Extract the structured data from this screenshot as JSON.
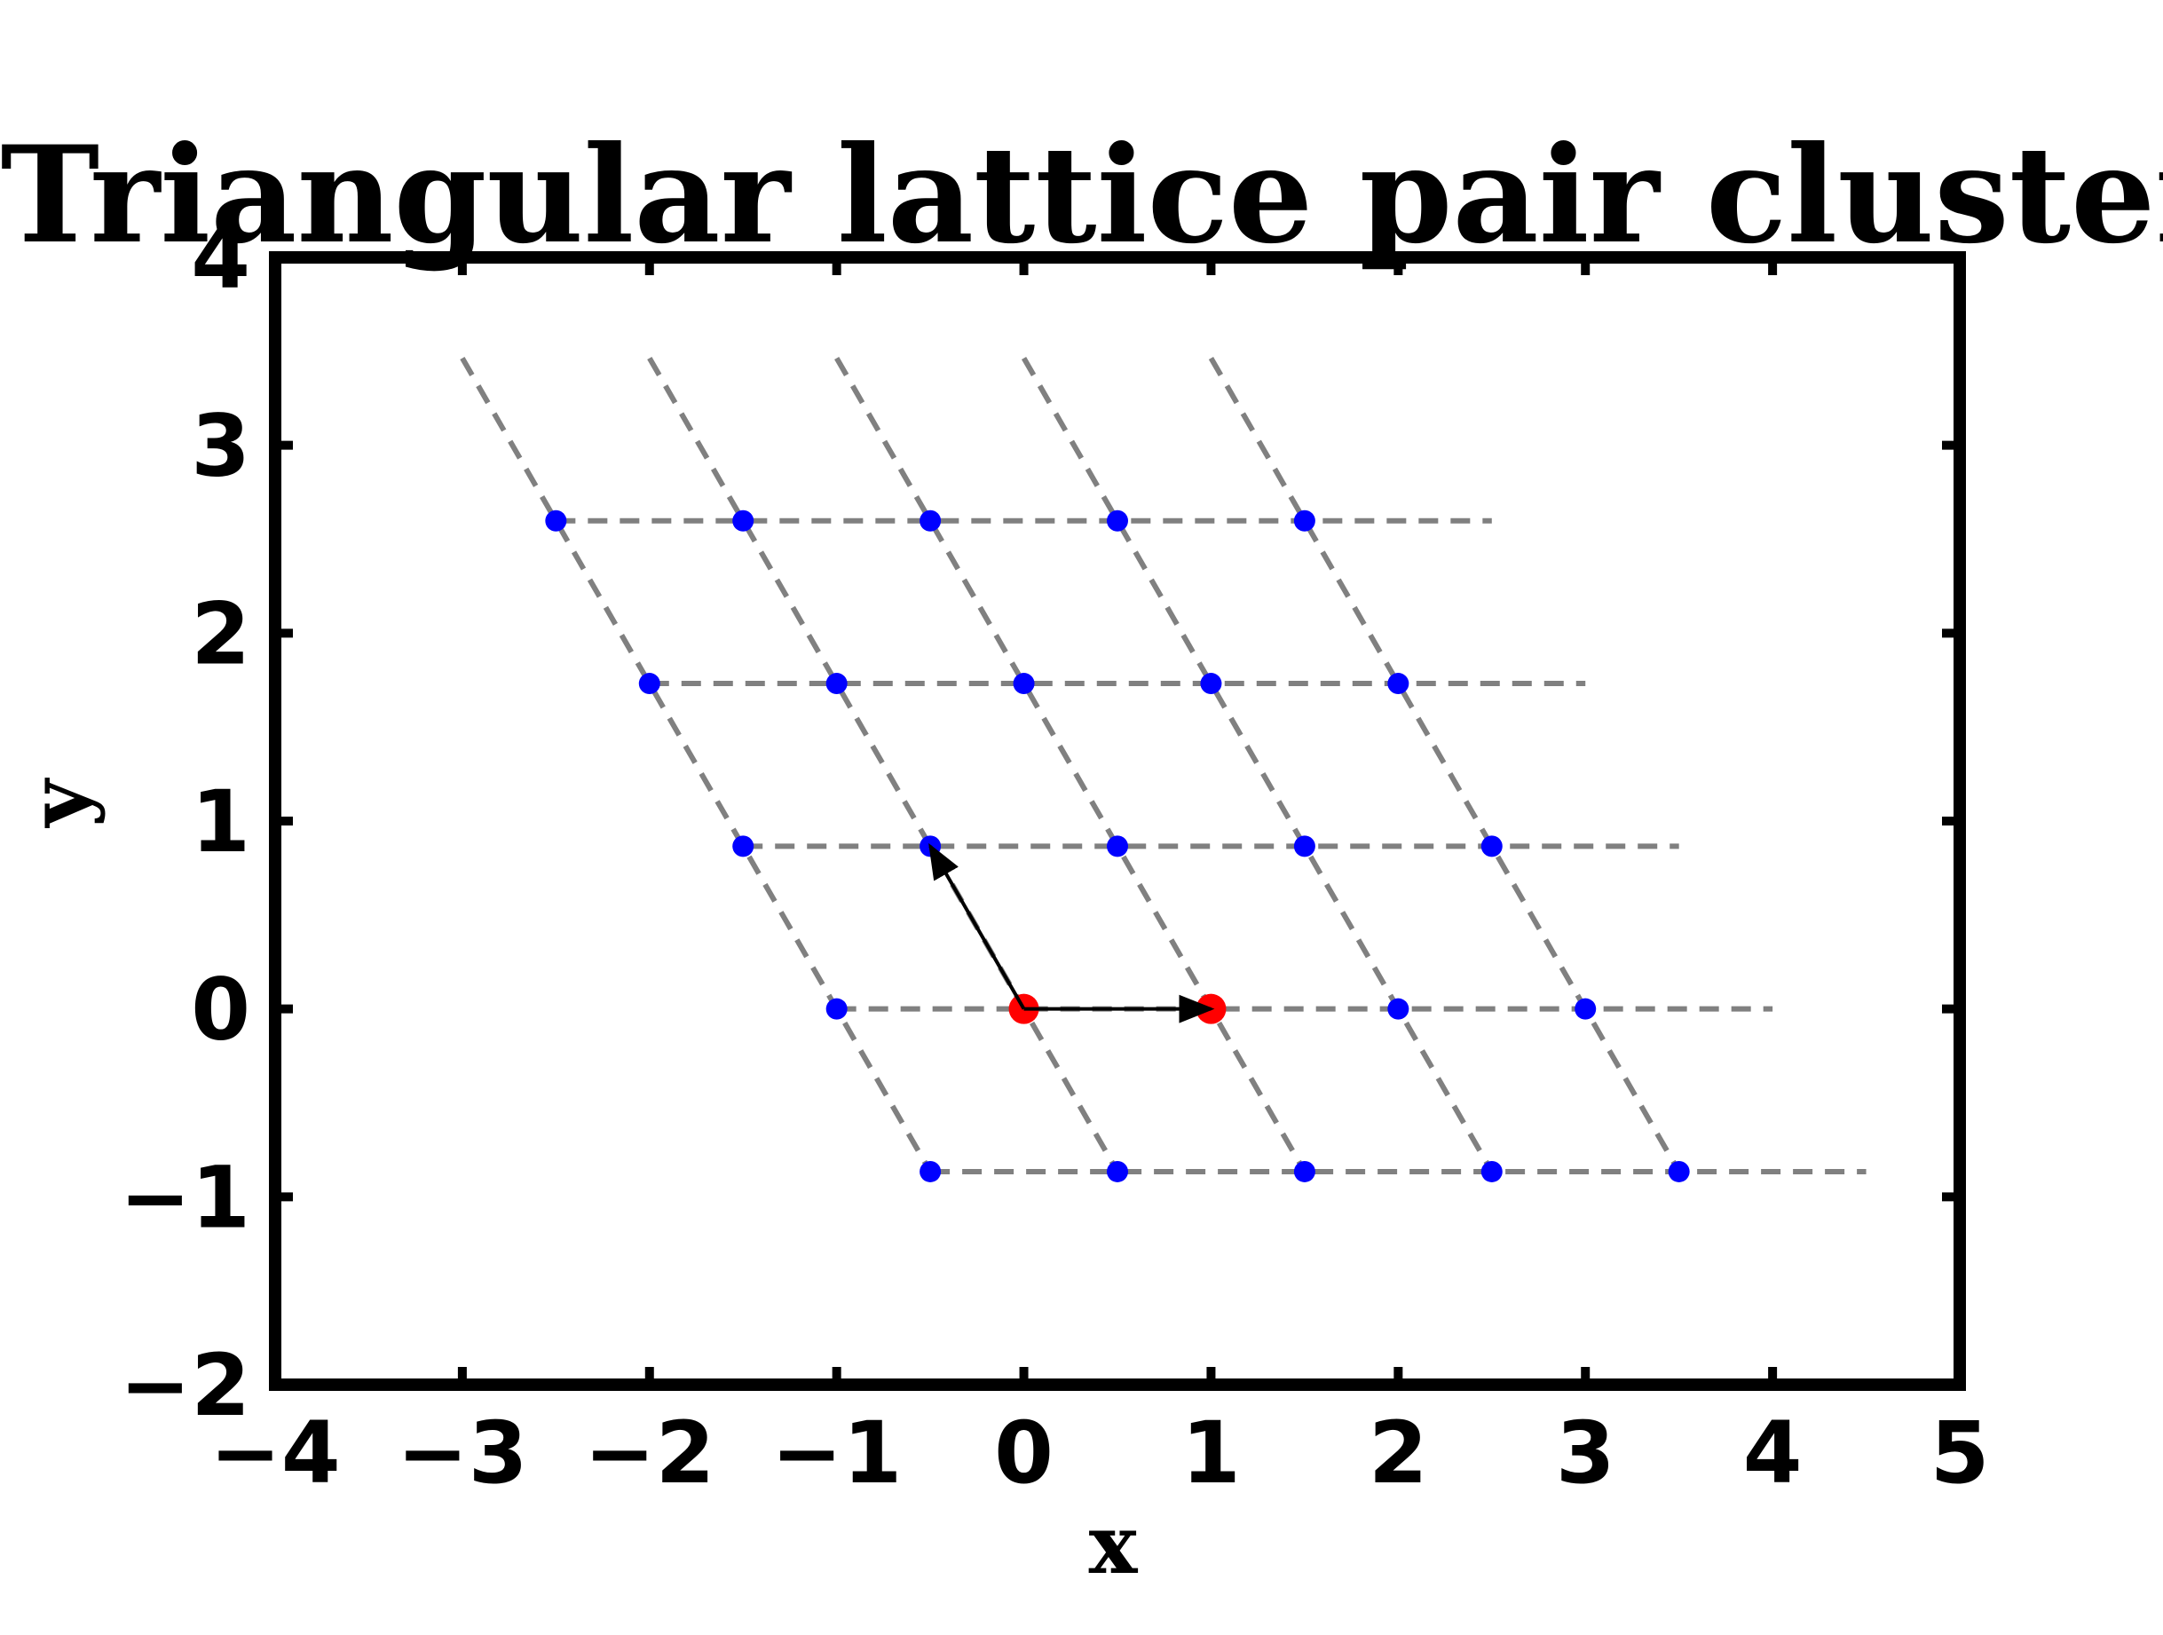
{
  "chart_data": {
    "type": "scatter",
    "title": "Triangular lattice pair cluster",
    "xlabel": "x",
    "ylabel": "y",
    "xlim": [
      -4,
      5
    ],
    "ylim": [
      -2,
      4
    ],
    "xticks": [
      -4,
      -3,
      -2,
      -1,
      0,
      1,
      2,
      3,
      4,
      5
    ],
    "yticks": [
      -2,
      -1,
      0,
      1,
      2,
      3,
      4
    ],
    "xtick_labels": [
      "−4",
      "−3",
      "−2",
      "−1",
      "0",
      "1",
      "2",
      "3",
      "4",
      "5"
    ],
    "ytick_labels": [
      "−2",
      "−1",
      "0",
      "1",
      "2",
      "3",
      "4"
    ],
    "grid": false,
    "legend": "none",
    "series": [
      {
        "kind": "lattice-points",
        "color": "#0000ff",
        "points": [
          [
            -2.5,
            2.598
          ],
          [
            -1.5,
            2.598
          ],
          [
            -0.5,
            2.598
          ],
          [
            0.5,
            2.598
          ],
          [
            1.5,
            2.598
          ],
          [
            -2.0,
            1.732
          ],
          [
            -1.0,
            1.732
          ],
          [
            0.0,
            1.732
          ],
          [
            1.0,
            1.732
          ],
          [
            2.0,
            1.732
          ],
          [
            -1.5,
            0.866
          ],
          [
            -0.5,
            0.866
          ],
          [
            0.5,
            0.866
          ],
          [
            1.5,
            0.866
          ],
          [
            2.5,
            0.866
          ],
          [
            -1.0,
            0.0
          ],
          [
            2.0,
            0.0
          ],
          [
            3.0,
            0.0
          ],
          [
            -0.5,
            -0.866
          ],
          [
            0.5,
            -0.866
          ],
          [
            1.5,
            -0.866
          ],
          [
            2.5,
            -0.866
          ],
          [
            3.5,
            -0.866
          ]
        ]
      },
      {
        "kind": "cluster-sites",
        "color": "#ff0000",
        "points": [
          [
            0.0,
            0.0
          ],
          [
            1.0,
            0.0
          ]
        ]
      }
    ],
    "lattice_lines": {
      "color": "#808080",
      "style": "dashed",
      "horizontal": [
        {
          "y": 2.598,
          "x": [
            -2.5,
            2.5
          ]
        },
        {
          "y": 1.732,
          "x": [
            -2.0,
            3.0
          ]
        },
        {
          "y": 0.866,
          "x": [
            -1.5,
            3.5
          ]
        },
        {
          "y": 0.0,
          "x": [
            -1.0,
            4.0
          ]
        },
        {
          "y": -0.866,
          "x": [
            -0.5,
            4.5
          ]
        }
      ],
      "diagonal": [
        {
          "x1": -3.0,
          "y1": 3.464,
          "x2": -0.5,
          "y2": -0.866
        },
        {
          "x1": -2.0,
          "y1": 3.464,
          "x2": 0.5,
          "y2": -0.866
        },
        {
          "x1": -1.0,
          "y1": 3.464,
          "x2": 1.5,
          "y2": -0.866
        },
        {
          "x1": 0.0,
          "y1": 3.464,
          "x2": 2.5,
          "y2": -0.866
        },
        {
          "x1": 1.0,
          "y1": 3.464,
          "x2": 3.5,
          "y2": -0.866
        }
      ]
    },
    "arrows": [
      {
        "from": [
          0.0,
          0.0
        ],
        "to": [
          1.0,
          0.0
        ],
        "color": "#000000"
      },
      {
        "from": [
          0.0,
          0.0
        ],
        "to": [
          -0.5,
          0.866
        ],
        "color": "#000000"
      }
    ]
  }
}
